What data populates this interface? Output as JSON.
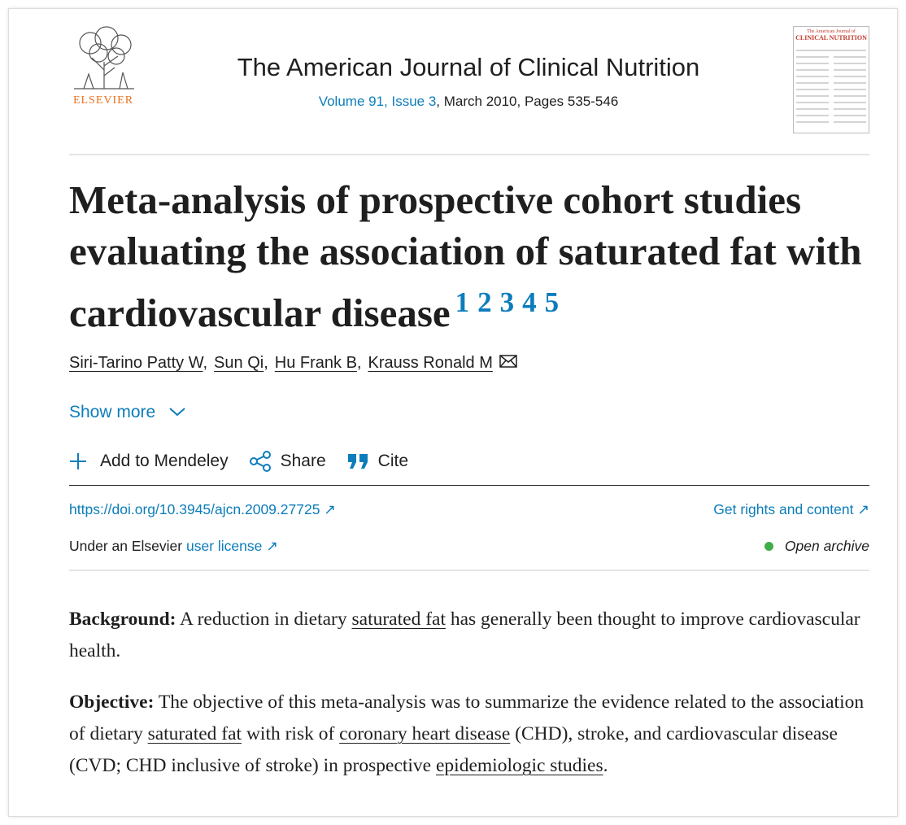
{
  "header": {
    "publisher": "ELSEVIER",
    "journal": "The American Journal of Clinical Nutrition",
    "volume_link": "Volume 91, Issue 3",
    "citation": ", March 2010, Pages 535-546"
  },
  "cover": {
    "line1": "The American Journal of",
    "line2": "CLINICAL NUTRITION"
  },
  "article": {
    "title": "Meta-analysis of prospective cohort studies evaluating the association of saturated fat with cardiovascular disease",
    "footnotes": [
      "1",
      "2",
      "3",
      "4",
      "5"
    ]
  },
  "authors": {
    "names": [
      "Siri-Tarino Patty W",
      "Sun Qi",
      "Hu Frank B",
      "Krauss Ronald M"
    ],
    "separator": ","
  },
  "show_more": "Show more",
  "actions": [
    "Add to Mendeley",
    "Share",
    "Cite"
  ],
  "links": {
    "doi": "https://doi.org/10.3945/ajcn.2009.27725",
    "rights": "Get rights and content"
  },
  "license": {
    "prefix": "Under an Elsevier",
    "link": "user license"
  },
  "access": "Open archive",
  "abstract": [
    {
      "label": "Background:",
      "segments": [
        {
          "text": " A reduction in dietary "
        },
        {
          "text": "saturated fat",
          "link": true
        },
        {
          "text": " has generally been thought to improve cardiovascular health."
        }
      ]
    },
    {
      "label": "Objective:",
      "segments": [
        {
          "text": " The objective of this meta-analysis was to summarize the evidence related to the association of dietary "
        },
        {
          "text": "saturated fat",
          "link": true
        },
        {
          "text": " with risk of "
        },
        {
          "text": "coronary heart disease",
          "link": true
        },
        {
          "text": " (CHD), stroke, and cardiovascular disease (CVD; CHD inclusive of stroke) in prospective "
        },
        {
          "text": "epidemiologic studies",
          "link": true
        },
        {
          "text": "."
        }
      ]
    }
  ]
}
